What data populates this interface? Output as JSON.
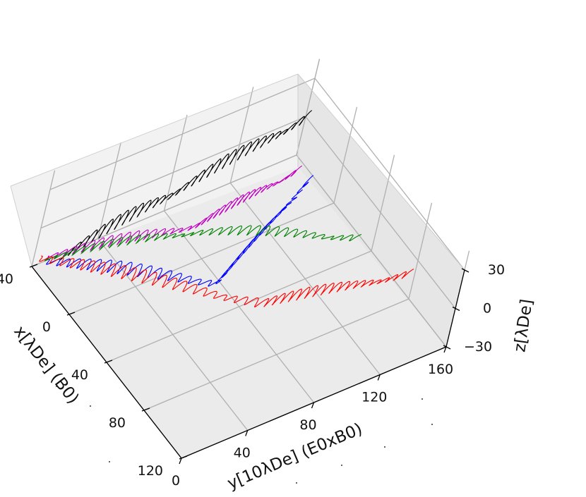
{
  "chart_data": {
    "type": "line",
    "projection": "3d",
    "axes": {
      "x": {
        "label": "x[λDe] (B0)",
        "ticks": [
          "−40",
          "0",
          "40",
          "80",
          "120"
        ],
        "range": [
          -40,
          120
        ]
      },
      "y": {
        "label": "y[10λDe] (E0xB0)",
        "ticks": [
          "0",
          "40",
          "80",
          "120",
          "160"
        ],
        "range": [
          0,
          160
        ]
      },
      "z": {
        "label": "z[λDe]",
        "ticks": [
          "−30",
          "0",
          "30"
        ],
        "range": [
          -30,
          30
        ]
      }
    },
    "grid": true,
    "legend": "none",
    "series": [
      {
        "color": "#000000",
        "x0": -30,
        "x1": -20,
        "y_range": [
          0,
          150
        ],
        "loops": 32,
        "amp": 18
      },
      {
        "color": "#bf00bf",
        "x0": -40,
        "x1": 40,
        "y_range": [
          0,
          140
        ],
        "loops": 34,
        "amp": 14
      },
      {
        "color": "#0000ff",
        "x0": -40,
        "x1": 40,
        "y_range": [
          0,
          145
        ],
        "loops": 34,
        "amp": 14
      },
      {
        "color": "#008000",
        "x0": -40,
        "x1": 70,
        "y_range": [
          0,
          150
        ],
        "loops": 34,
        "amp": 12
      },
      {
        "color": "#ff0000",
        "x0": -40,
        "x1": 115,
        "y_range": [
          0,
          160
        ],
        "loops": 40,
        "amp": 14
      }
    ]
  }
}
